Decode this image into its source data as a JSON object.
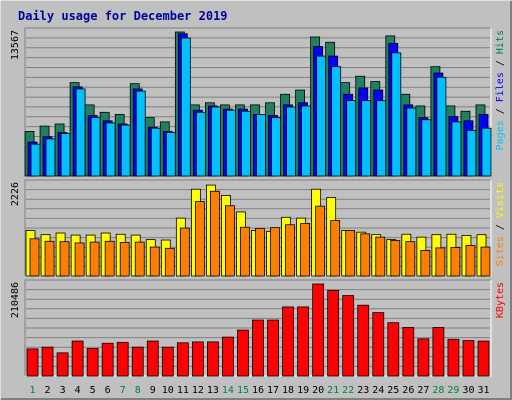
{
  "chart_data": {
    "type": "bar",
    "title": "Daily usage for December 2019",
    "days": [
      "1",
      "2",
      "3",
      "4",
      "5",
      "6",
      "7",
      "8",
      "9",
      "10",
      "11",
      "12",
      "13",
      "14",
      "15",
      "16",
      "17",
      "18",
      "19",
      "20",
      "21",
      "22",
      "23",
      "24",
      "25",
      "26",
      "27",
      "28",
      "29",
      "30",
      "31"
    ],
    "weekend_days": [
      "1",
      "7",
      "8",
      "14",
      "15",
      "21",
      "22",
      "28",
      "29"
    ],
    "panels": [
      {
        "id": "hits",
        "max_label": "13567",
        "max": 13567,
        "axis_label_parts": [
          {
            "text": "Pages",
            "color": "#00c0ff"
          },
          {
            "text": " / ",
            "color": "#000000"
          },
          {
            "text": "Files",
            "color": "#0000ff"
          },
          {
            "text": " / ",
            "color": "#000000"
          },
          {
            "text": "Hits",
            "color": "#008040"
          }
        ],
        "series": [
          {
            "name": "Hits",
            "color": "#208060",
            "values": [
              4200,
              4700,
              4900,
              8800,
              6700,
              6000,
              5800,
              8700,
              5500,
              5100,
              13567,
              6700,
              6900,
              6700,
              6700,
              6700,
              6900,
              7700,
              8100,
              13100,
              12600,
              8800,
              9400,
              8900,
              13200,
              7700,
              6600,
              10300,
              6600,
              6100,
              6700
            ]
          },
          {
            "name": "Files",
            "color": "#0000ff",
            "values": [
              3200,
              3700,
              4100,
              8400,
              5700,
              5200,
              4900,
              8200,
              4600,
              4200,
              13400,
              6200,
              6600,
              6300,
              6300,
              5800,
              5700,
              6700,
              6900,
              12200,
              11300,
              7700,
              8300,
              8100,
              12500,
              6700,
              5500,
              9700,
              5600,
              5200,
              5800
            ]
          },
          {
            "name": "Pages",
            "color": "#00c0ff",
            "values": [
              3000,
              3500,
              4000,
              8200,
              5500,
              5000,
              4800,
              8000,
              4500,
              4100,
              13000,
              6000,
              6500,
              6200,
              6100,
              5800,
              5500,
              6500,
              6600,
              11300,
              10300,
              7100,
              7100,
              7100,
              11600,
              6400,
              5300,
              9300,
              5100,
              4300,
              4500
            ]
          }
        ]
      },
      {
        "id": "visits",
        "max_label": "2226",
        "max": 2226,
        "axis_label_parts": [
          {
            "text": "Sites",
            "color": "#ff8000"
          },
          {
            "text": " / ",
            "color": "#000000"
          },
          {
            "text": "Visits",
            "color": "#ffff00"
          }
        ],
        "series": [
          {
            "name": "Visits",
            "color": "#ffff00",
            "values": [
              1100,
              1000,
              1040,
              990,
              990,
              1040,
              1010,
              990,
              880,
              870,
              1400,
              2100,
              2200,
              1950,
              1550,
              1100,
              1080,
              1420,
              1400,
              2100,
              1900,
              1100,
              1060,
              1000,
              880,
              1010,
              940,
              1000,
              1010,
              980,
              1000
            ]
          },
          {
            "name": "Sites",
            "color": "#ff8000",
            "values": [
              900,
              840,
              830,
              800,
              820,
              840,
              810,
              820,
              700,
              670,
              1160,
              1800,
              2050,
              1700,
              1180,
              1150,
              1170,
              1240,
              1270,
              1690,
              1340,
              1100,
              1020,
              940,
              860,
              830,
              620,
              680,
              690,
              740,
              700
            ]
          }
        ]
      },
      {
        "id": "kbytes",
        "max_label": "210486",
        "max": 210486,
        "axis_label_parts": [
          {
            "text": "KBytes",
            "color": "#ff0000"
          }
        ],
        "series": [
          {
            "name": "KBytes",
            "color": "#ff0000",
            "values": [
              62000,
              66000,
              53000,
              80000,
              63000,
              75000,
              77000,
              66000,
              80000,
              66000,
              76000,
              78000,
              78000,
              89000,
              105000,
              128000,
              128000,
              158000,
              158000,
              210486,
              196000,
              184000,
              162000,
              145000,
              122000,
              111000,
              85000,
              111000,
              84000,
              81000,
              80000
            ]
          }
        ]
      }
    ]
  }
}
